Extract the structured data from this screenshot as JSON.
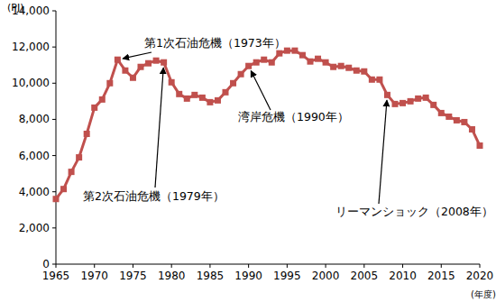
{
  "chart_data": {
    "type": "line",
    "y_label": "(PJ)",
    "x_label": "(年度)",
    "x": [
      1965,
      1966,
      1967,
      1968,
      1969,
      1970,
      1971,
      1972,
      1973,
      1974,
      1975,
      1976,
      1977,
      1978,
      1979,
      1980,
      1981,
      1982,
      1983,
      1984,
      1985,
      1986,
      1987,
      1988,
      1989,
      1990,
      1991,
      1992,
      1993,
      1994,
      1995,
      1996,
      1997,
      1998,
      1999,
      2000,
      2001,
      2002,
      2003,
      2004,
      2005,
      2006,
      2007,
      2008,
      2009,
      2010,
      2011,
      2012,
      2013,
      2014,
      2015,
      2016,
      2017,
      2018,
      2019,
      2020
    ],
    "series": [
      {
        "color": "#c0504d",
        "marker": "square",
        "values": [
          3600,
          4150,
          5100,
          5900,
          7200,
          8650,
          9100,
          10000,
          11300,
          10700,
          10300,
          10900,
          11100,
          11250,
          11150,
          10050,
          9400,
          9150,
          9350,
          9200,
          8950,
          9050,
          9500,
          10000,
          10500,
          10950,
          11150,
          11300,
          11150,
          11650,
          11800,
          11800,
          11550,
          11200,
          11350,
          11150,
          10900,
          10950,
          10850,
          10700,
          10650,
          10200,
          10200,
          9350,
          8850,
          8900,
          9000,
          9150,
          9200,
          8800,
          8350,
          8150,
          7950,
          7850,
          7450,
          6550
        ]
      }
    ],
    "xlim": [
      1965,
      2020
    ],
    "xticks": [
      1965,
      1970,
      1975,
      1980,
      1985,
      1990,
      1995,
      2000,
      2005,
      2010,
      2015,
      2020
    ],
    "ylim": [
      0,
      14000
    ],
    "yticks": [
      0,
      {
        "value": 2000,
        "label": "2,000"
      },
      {
        "value": 4000,
        "label": "4,000"
      },
      {
        "value": 6000,
        "label": "6,000"
      },
      {
        "value": 8000,
        "label": "8,000"
      },
      {
        "value": 10000,
        "label": "10,000"
      },
      {
        "value": 12000,
        "label": "12,000"
      },
      {
        "value": 14000,
        "label": "14,000"
      }
    ],
    "grid": false,
    "annotations": [
      {
        "text": "第1次石油危機（1973年）",
        "x": 1973
      },
      {
        "text": "第2次石油危機（1979年）",
        "x": 1979
      },
      {
        "text": "湾岸危機（1990年）",
        "x": 1990
      },
      {
        "text": "リーマンショック（2008年）",
        "x": 2008
      }
    ]
  }
}
